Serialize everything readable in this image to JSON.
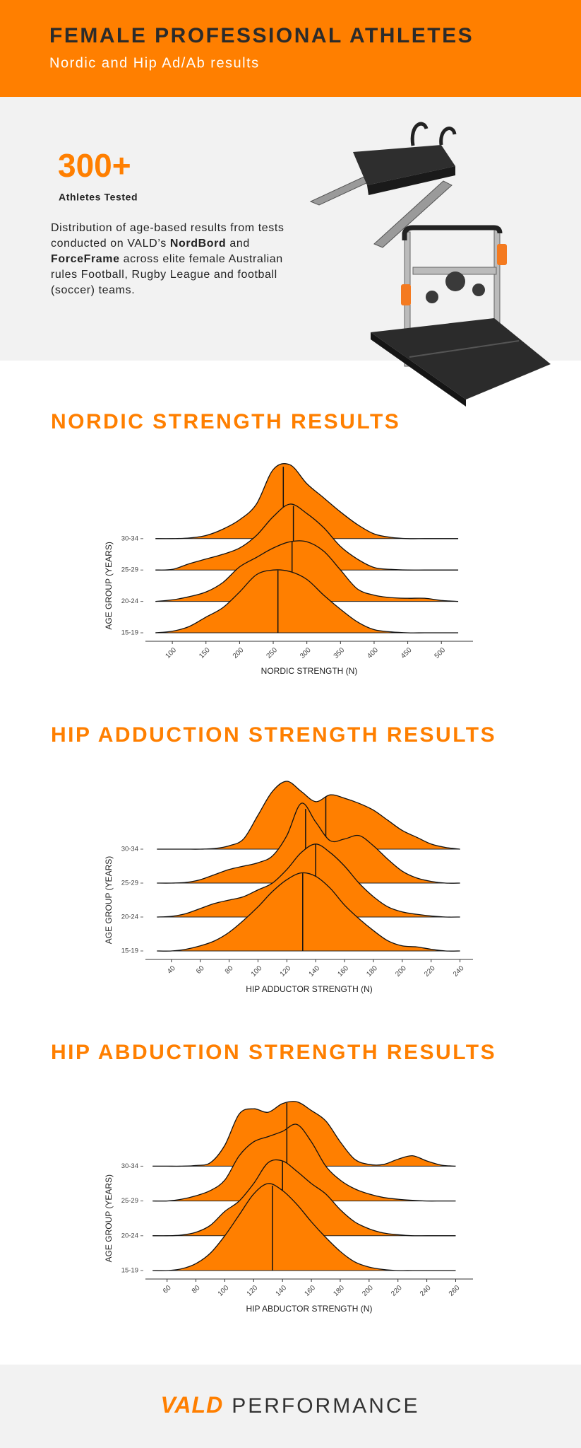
{
  "header": {
    "title": "FEMALE PROFESSIONAL ATHLETES",
    "subtitle": "Nordic and Hip Ad/Ab results"
  },
  "intro": {
    "stat": "300+",
    "stat_label": "Athletes Tested",
    "description": [
      "Distribution of age-based results from tests conducted on VALD’s ",
      "NordBord",
      " and ",
      "ForceFrame",
      " across elite female Australian rules Football, Rugby League and football (soccer) teams."
    ]
  },
  "chart_data": [
    {
      "type": "ridgeline",
      "title": "NORDIC STRENGTH RESULTS",
      "x_label": "NORDIC STRENGTH (N)",
      "y_label": "AGE GROUP (YEARS)",
      "xlim": [
        60,
        547
      ],
      "xticks": [
        100,
        150,
        200,
        250,
        300,
        350,
        400,
        450,
        500
      ],
      "x": [
        75,
        100,
        125,
        150,
        175,
        200,
        225,
        250,
        275,
        300,
        325,
        350,
        375,
        400,
        425,
        450,
        475,
        500,
        525
      ],
      "series": [
        {
          "name": "30-34",
          "color": "#ff7f00",
          "median": 265,
          "values": [
            0,
            0,
            0.02,
            0.1,
            0.3,
            0.6,
            1.1,
            2.2,
            2.35,
            1.75,
            1.3,
            0.85,
            0.45,
            0.15,
            0.04,
            0,
            0,
            0,
            0
          ]
        },
        {
          "name": "25-29",
          "color": "#ff7f00",
          "median": 280,
          "values": [
            0,
            0.02,
            0.2,
            0.35,
            0.5,
            0.7,
            1.1,
            1.7,
            2.1,
            1.8,
            1.35,
            0.75,
            0.35,
            0.08,
            0.02,
            0,
            0,
            0,
            0
          ]
        },
        {
          "name": "20-24",
          "color": "#ff7f00",
          "median": 278,
          "values": [
            0,
            0.05,
            0.15,
            0.3,
            0.6,
            1.1,
            1.4,
            1.7,
            1.9,
            1.9,
            1.6,
            1.0,
            0.4,
            0.2,
            0.12,
            0.1,
            0.1,
            0.03,
            0
          ]
        },
        {
          "name": "15-19",
          "color": "#ff7f00",
          "median": 257,
          "values": [
            0,
            0.05,
            0.2,
            0.5,
            0.8,
            1.3,
            1.85,
            2.0,
            1.95,
            1.7,
            1.2,
            0.75,
            0.35,
            0.1,
            0.03,
            0,
            0,
            0,
            0
          ]
        }
      ]
    },
    {
      "type": "ridgeline",
      "title": "HIP ADDUCTION STRENGTH RESULTS",
      "x_label": "HIP ADDUCTOR STRENGTH (N)",
      "y_label": "AGE GROUP (YEARS)",
      "xlim": [
        22,
        249
      ],
      "xticks": [
        40,
        60,
        80,
        100,
        120,
        140,
        160,
        180,
        200,
        220,
        240
      ],
      "x": [
        30,
        40,
        50,
        60,
        70,
        80,
        90,
        100,
        110,
        120,
        130,
        140,
        150,
        160,
        170,
        180,
        190,
        200,
        210,
        220,
        230,
        240
      ],
      "series": [
        {
          "name": "30-34",
          "color": "#ff7f00",
          "median": 147,
          "values": [
            0,
            0,
            0,
            0,
            0.02,
            0.1,
            0.3,
            1.0,
            1.7,
            2.0,
            1.7,
            1.4,
            1.6,
            1.5,
            1.35,
            1.15,
            0.85,
            0.55,
            0.35,
            0.15,
            0.05,
            0
          ]
        },
        {
          "name": "25-29",
          "color": "#ff7f00",
          "median": 133,
          "values": [
            0,
            0,
            0.02,
            0.1,
            0.25,
            0.4,
            0.5,
            0.6,
            0.8,
            1.4,
            2.35,
            1.8,
            1.25,
            1.3,
            1.4,
            1.1,
            0.7,
            0.35,
            0.15,
            0.05,
            0,
            0
          ]
        },
        {
          "name": "20-24",
          "color": "#ff7f00",
          "median": 140,
          "values": [
            0,
            0.02,
            0.1,
            0.25,
            0.4,
            0.5,
            0.6,
            0.8,
            1.0,
            1.4,
            1.9,
            2.15,
            1.9,
            1.5,
            1.0,
            0.6,
            0.3,
            0.15,
            0.08,
            0.03,
            0,
            0
          ]
        },
        {
          "name": "15-19",
          "color": "#ff7f00",
          "median": 131,
          "values": [
            0,
            0,
            0.05,
            0.15,
            0.3,
            0.55,
            0.9,
            1.3,
            1.75,
            2.1,
            2.3,
            2.2,
            1.85,
            1.35,
            0.95,
            0.6,
            0.3,
            0.15,
            0.12,
            0.05,
            0,
            0
          ]
        }
      ]
    },
    {
      "type": "ridgeline",
      "title": "HIP ABDUCTION STRENGTH RESULTS",
      "x_label": "HIP ABDUCTOR STRENGTH (N)",
      "y_label": "AGE GROUP (YEARS)",
      "xlim": [
        45,
        272
      ],
      "xticks": [
        60,
        80,
        100,
        120,
        140,
        160,
        180,
        200,
        220,
        240,
        260
      ],
      "x": [
        50,
        60,
        70,
        80,
        90,
        100,
        110,
        120,
        130,
        140,
        150,
        160,
        170,
        180,
        190,
        200,
        210,
        220,
        230,
        240,
        250,
        260
      ],
      "series": [
        {
          "name": "30-34",
          "color": "#ff7f00",
          "median": 143,
          "values": [
            0,
            0,
            0,
            0.02,
            0.1,
            0.6,
            1.5,
            1.65,
            1.55,
            1.8,
            1.85,
            1.6,
            1.3,
            0.7,
            0.2,
            0.05,
            0.05,
            0.2,
            0.3,
            0.15,
            0.03,
            0
          ]
        },
        {
          "name": "25-29",
          "color": "#ff7f00",
          "median": 143,
          "values": [
            0,
            0,
            0.05,
            0.15,
            0.3,
            0.6,
            1.3,
            1.7,
            1.85,
            2.0,
            2.2,
            1.7,
            1.0,
            0.6,
            0.35,
            0.2,
            0.1,
            0.05,
            0.02,
            0,
            0,
            0
          ]
        },
        {
          "name": "20-24",
          "color": "#ff7f00",
          "median": 140,
          "values": [
            0,
            0,
            0.02,
            0.1,
            0.3,
            0.7,
            1.0,
            1.5,
            2.1,
            2.15,
            1.85,
            1.5,
            1.2,
            0.75,
            0.4,
            0.2,
            0.08,
            0.03,
            0,
            0,
            0,
            0
          ]
        },
        {
          "name": "15-19",
          "color": "#ff7f00",
          "median": 133,
          "values": [
            0,
            0,
            0.05,
            0.2,
            0.5,
            1.0,
            1.6,
            2.2,
            2.5,
            2.3,
            1.9,
            1.4,
            0.95,
            0.55,
            0.25,
            0.1,
            0.03,
            0,
            0,
            0,
            0,
            0
          ]
        }
      ]
    }
  ],
  "footer": {
    "brand": "VALD",
    "tagline": "PERFORMANCE"
  }
}
